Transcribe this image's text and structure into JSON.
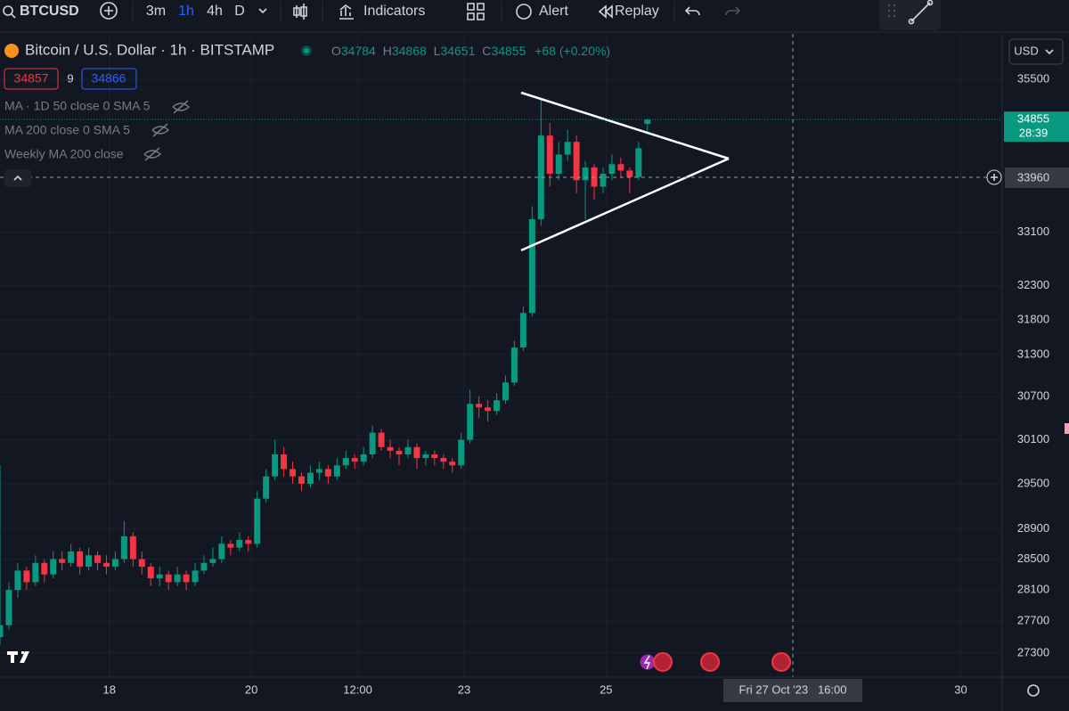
{
  "toolbar": {
    "symbol": "BTCUSD",
    "intervals": [
      "3m",
      "1h",
      "4h",
      "D"
    ],
    "indicators": "Indicators",
    "alert": "Alert",
    "replay": "Replay"
  },
  "legend": {
    "title": "Bitcoin / U.S. Dollar · 1h · BITSTAMP",
    "ohlc": [
      {
        "label": "O",
        "value": "34784"
      },
      {
        "label": "H",
        "value": "34868"
      },
      {
        "label": "L",
        "value": "34651"
      },
      {
        "label": "C",
        "value": "34855"
      }
    ],
    "change": "+68 (+0.20%)",
    "bid": "34857",
    "spread": "9",
    "ask": "34866",
    "indicators": [
      "MA · 1D 50 close 0 SMA 5",
      "MA 200 close 0 SMA 5",
      "Weekly MA 200 close"
    ]
  },
  "currency": "USD",
  "crosshair": {
    "price": "33960",
    "time": "Fri 27 Oct '23   16:00"
  },
  "last_price": {
    "price": "34855",
    "countdown": "28:39"
  },
  "chart_data": {
    "type": "candlestick",
    "log_scale": true,
    "grid": true,
    "up_color": "#089981",
    "down_color": "#f23645",
    "ylim": [
      27000,
      36250
    ],
    "yticks": [
      27300,
      27700,
      28100,
      28500,
      28900,
      29500,
      30100,
      30700,
      31300,
      31800,
      32300,
      33100,
      35500
    ],
    "xlim": [
      11,
      350
    ],
    "xticks": [
      {
        "value": 48,
        "label": "18"
      },
      {
        "value": 96,
        "label": "20"
      },
      {
        "value": 132,
        "label": "12:00"
      },
      {
        "value": 168,
        "label": "23"
      },
      {
        "value": 216,
        "label": "25"
      },
      {
        "value": 336,
        "label": "30"
      }
    ],
    "candles": [
      [
        11,
        27500,
        29750,
        27400,
        27650
      ],
      [
        14,
        27650,
        28200,
        27600,
        28100
      ],
      [
        17,
        28100,
        28450,
        28000,
        28350
      ],
      [
        20,
        28350,
        28400,
        28100,
        28200
      ],
      [
        23,
        28200,
        28550,
        28150,
        28450
      ],
      [
        26,
        28450,
        28500,
        28200,
        28300
      ],
      [
        29,
        28300,
        28600,
        28250,
        28500
      ],
      [
        32,
        28500,
        28600,
        28350,
        28450
      ],
      [
        35,
        28450,
        28700,
        28400,
        28600
      ],
      [
        38,
        28600,
        28650,
        28300,
        28400
      ],
      [
        41,
        28400,
        28650,
        28350,
        28550
      ],
      [
        44,
        28550,
        28600,
        28350,
        28450
      ],
      [
        47,
        28450,
        28550,
        28300,
        28400
      ],
      [
        50,
        28400,
        28600,
        28350,
        28500
      ],
      [
        53,
        28500,
        29000,
        28450,
        28800
      ],
      [
        56,
        28800,
        28850,
        28400,
        28500
      ],
      [
        59,
        28500,
        28600,
        28300,
        28400
      ],
      [
        62,
        28400,
        28450,
        28150,
        28250
      ],
      [
        65,
        28250,
        28400,
        28150,
        28300
      ],
      [
        68,
        28300,
        28350,
        28100,
        28200
      ],
      [
        71,
        28200,
        28400,
        28150,
        28300
      ],
      [
        74,
        28300,
        28350,
        28100,
        28200
      ],
      [
        77,
        28200,
        28450,
        28150,
        28350
      ],
      [
        80,
        28350,
        28550,
        28300,
        28450
      ],
      [
        83,
        28450,
        28650,
        28400,
        28500
      ],
      [
        86,
        28500,
        28800,
        28450,
        28700
      ],
      [
        89,
        28700,
        28750,
        28550,
        28650
      ],
      [
        92,
        28650,
        28850,
        28600,
        28750
      ],
      [
        95,
        28750,
        28800,
        28600,
        28700
      ],
      [
        98,
        28700,
        29400,
        28650,
        29300
      ],
      [
        101,
        29300,
        29700,
        29250,
        29600
      ],
      [
        104,
        29600,
        30100,
        29550,
        29900
      ],
      [
        107,
        29900,
        30000,
        29600,
        29700
      ],
      [
        110,
        29700,
        29800,
        29500,
        29600
      ],
      [
        113,
        29600,
        29650,
        29400,
        29500
      ],
      [
        116,
        29500,
        29750,
        29450,
        29650
      ],
      [
        119,
        29650,
        29800,
        29550,
        29700
      ],
      [
        122,
        29700,
        29750,
        29500,
        29600
      ],
      [
        125,
        29600,
        29850,
        29550,
        29750
      ],
      [
        128,
        29750,
        29950,
        29700,
        29850
      ],
      [
        131,
        29850,
        29900,
        29700,
        29800
      ],
      [
        134,
        29800,
        30000,
        29750,
        29900
      ],
      [
        137,
        29900,
        30300,
        29850,
        30200
      ],
      [
        140,
        30200,
        30250,
        29950,
        30000
      ],
      [
        143,
        30000,
        30100,
        29850,
        29950
      ],
      [
        146,
        29950,
        30000,
        29750,
        29900
      ],
      [
        149,
        29900,
        30100,
        29850,
        30000
      ],
      [
        152,
        30000,
        30050,
        29700,
        29850
      ],
      [
        155,
        29850,
        29950,
        29750,
        29900
      ],
      [
        158,
        29900,
        29950,
        29750,
        29850
      ],
      [
        161,
        29850,
        29900,
        29700,
        29800
      ],
      [
        164,
        29800,
        29850,
        29650,
        29750
      ],
      [
        167,
        29750,
        30200,
        29700,
        30100
      ],
      [
        170,
        30100,
        30800,
        30050,
        30600
      ],
      [
        173,
        30600,
        30700,
        30400,
        30550
      ],
      [
        176,
        30550,
        30650,
        30350,
        30500
      ],
      [
        179,
        30500,
        30750,
        30450,
        30650
      ],
      [
        182,
        30650,
        31000,
        30600,
        30900
      ],
      [
        185,
        30900,
        31500,
        30850,
        31400
      ],
      [
        188,
        31400,
        32000,
        31350,
        31900
      ],
      [
        191,
        31900,
        33500,
        31850,
        33300
      ],
      [
        194,
        33300,
        35200,
        33200,
        34600
      ],
      [
        197,
        34600,
        34800,
        33800,
        34000
      ],
      [
        200,
        34000,
        34500,
        33900,
        34300
      ],
      [
        203,
        34300,
        34700,
        34200,
        34500
      ],
      [
        206,
        34500,
        34600,
        33700,
        33900
      ],
      [
        209,
        33900,
        34200,
        33300,
        34100
      ],
      [
        212,
        34100,
        34150,
        33600,
        33800
      ],
      [
        215,
        33800,
        34100,
        33700,
        34000
      ],
      [
        218,
        34000,
        34300,
        33900,
        34150
      ],
      [
        221,
        34150,
        34250,
        33950,
        34050
      ],
      [
        224,
        34050,
        34100,
        33700,
        33950
      ],
      [
        227,
        33950,
        34500,
        33900,
        34400
      ],
      [
        230,
        34784,
        34868,
        34651,
        34855
      ]
    ]
  }
}
